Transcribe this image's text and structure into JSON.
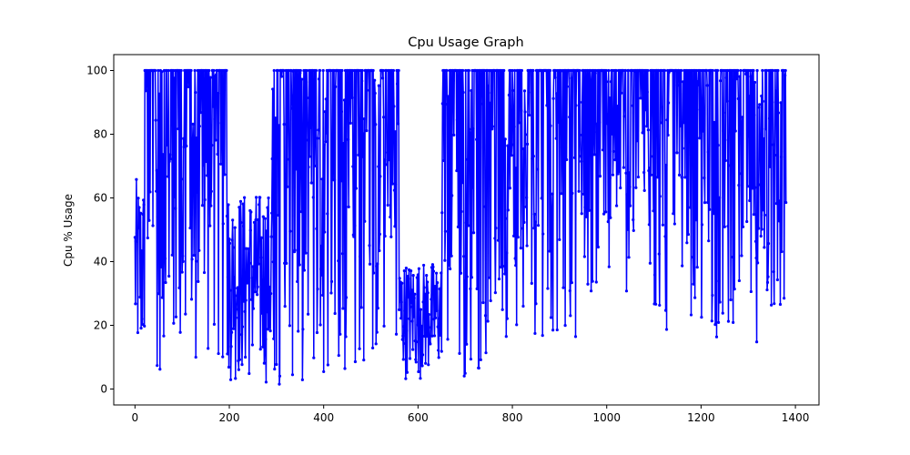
{
  "chart_data": {
    "type": "line",
    "title": "Cpu Usage Graph",
    "xlabel": "",
    "ylabel": "Cpu % Usage",
    "xlim": [
      -45,
      1450
    ],
    "ylim": [
      -5,
      105
    ],
    "xticks": [
      0,
      200,
      400,
      600,
      800,
      1000,
      1200,
      1400
    ],
    "yticks": [
      0,
      20,
      40,
      60,
      80,
      100
    ],
    "grid": false,
    "legend": "none",
    "colors": {
      "line": "#0000ff",
      "marker": "#0000ff"
    },
    "series": [
      {
        "x_start": 0,
        "x_end": 1380,
        "regimes": [
          {
            "from": 0,
            "to": 20,
            "low": 2,
            "high": 66
          },
          {
            "from": 20,
            "to": 100,
            "low": 3,
            "high": 100
          },
          {
            "from": 100,
            "to": 195,
            "low": 5,
            "high": 100
          },
          {
            "from": 195,
            "to": 290,
            "low": 1,
            "high": 62
          },
          {
            "from": 290,
            "to": 470,
            "low": 0,
            "high": 100
          },
          {
            "from": 470,
            "to": 560,
            "low": 5,
            "high": 100
          },
          {
            "from": 560,
            "to": 650,
            "low": 3,
            "high": 40
          },
          {
            "from": 650,
            "to": 745,
            "low": 3,
            "high": 100
          },
          {
            "from": 745,
            "to": 940,
            "low": 16,
            "high": 100
          },
          {
            "from": 940,
            "to": 1090,
            "low": 28,
            "high": 100
          },
          {
            "from": 1090,
            "to": 1380,
            "low": 14,
            "high": 100
          }
        ]
      }
    ]
  }
}
